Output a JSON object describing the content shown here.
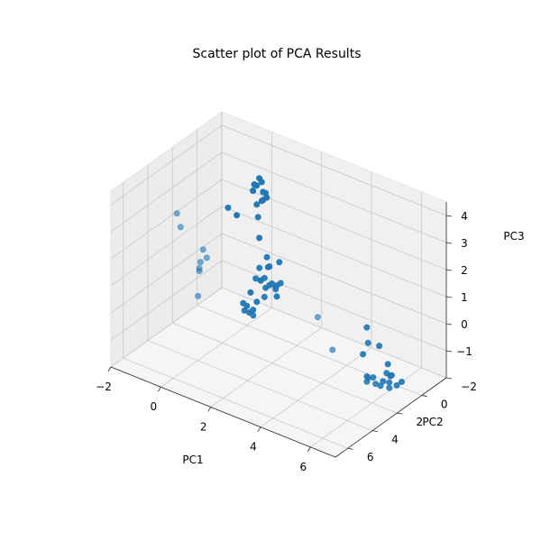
{
  "chart_data": {
    "type": "scatter",
    "title": "Scatter plot of PCA Results",
    "xlabel": "PC1",
    "ylabel": "PC2",
    "zlabel": "PC3",
    "xlim": [
      -2,
      7
    ],
    "ylim": [
      -2,
      7
    ],
    "zlim": [
      -2,
      4.5
    ],
    "xticks": [
      "−2",
      "0",
      "2",
      "4",
      "6"
    ],
    "yticks": [
      "−2",
      "0",
      "2",
      "4",
      "6"
    ],
    "zticks": [
      "−1",
      "0",
      "1",
      "2",
      "3",
      "4"
    ],
    "grid": true,
    "marker_color": "#1f77b4",
    "points": [
      [
        -0.5,
        -2.0,
        2.6
      ],
      [
        -0.3,
        -1.9,
        2.2
      ],
      [
        -0.6,
        -1.8,
        2.4
      ],
      [
        -0.2,
        -1.7,
        2.0
      ],
      [
        -0.4,
        -1.6,
        2.5
      ],
      [
        -0.1,
        -1.8,
        2.1
      ],
      [
        -0.5,
        -1.5,
        2.3
      ],
      [
        -0.3,
        -1.4,
        1.9
      ],
      [
        -0.2,
        -1.6,
        2.7
      ],
      [
        -0.6,
        -1.7,
        2.2
      ],
      [
        -0.4,
        -2.0,
        1.8
      ],
      [
        0.0,
        -1.5,
        2.4
      ],
      [
        -1.5,
        -1.5,
        1.3
      ],
      [
        -1.3,
        -1.8,
        1.0
      ],
      [
        -0.3,
        -1.5,
        1.4
      ],
      [
        -0.2,
        -1.4,
        0.7
      ],
      [
        0.3,
        -1.0,
        0.3
      ],
      [
        0.5,
        -0.8,
        0.1
      ],
      [
        0.7,
        -1.2,
        0.2
      ],
      [
        0.2,
        -0.6,
        0.0
      ],
      [
        0.4,
        -1.0,
        -0.7
      ],
      [
        0.6,
        -0.8,
        -0.5
      ],
      [
        0.2,
        -1.1,
        -0.9
      ],
      [
        0.8,
        -0.7,
        -0.6
      ],
      [
        0.3,
        -0.5,
        -0.4
      ],
      [
        0.5,
        -1.3,
        -0.8
      ],
      [
        0.1,
        -0.9,
        -0.6
      ],
      [
        0.7,
        -1.0,
        -1.0
      ],
      [
        0.4,
        -0.6,
        -0.3
      ],
      [
        0.6,
        -1.2,
        -0.7
      ],
      [
        0.0,
        -0.7,
        -0.5
      ],
      [
        0.9,
        -0.9,
        -0.4
      ],
      [
        0.2,
        -1.3,
        -0.2
      ],
      [
        0.5,
        -0.4,
        -0.9
      ],
      [
        -0.6,
        -1.2,
        -1.9
      ],
      [
        -0.4,
        -1.0,
        -2.0
      ],
      [
        -0.5,
        -0.8,
        -1.9
      ],
      [
        -0.3,
        -1.4,
        -1.7
      ],
      [
        -0.7,
        -1.1,
        -1.8
      ],
      [
        -0.2,
        -0.9,
        -2.0
      ],
      [
        -0.6,
        -1.5,
        -1.5
      ],
      [
        -0.4,
        -1.3,
        -2.0
      ],
      [
        0.4,
        6.2,
        3.8
      ],
      [
        0.3,
        6.3,
        4.3
      ],
      [
        0.8,
        5.6,
        1.2
      ],
      [
        1.2,
        6.0,
        3.2
      ],
      [
        1.0,
        5.8,
        2.6
      ],
      [
        1.1,
        6.1,
        2.4
      ],
      [
        1.3,
        5.9,
        2.9
      ],
      [
        0.9,
        5.7,
        2.3
      ],
      [
        4.8,
        0.0,
        -0.3
      ],
      [
        5.0,
        0.3,
        -0.7
      ],
      [
        5.2,
        -0.2,
        -0.9
      ],
      [
        4.6,
        -0.1,
        -1.4
      ],
      [
        5.3,
        0.5,
        -1.8
      ],
      [
        5.5,
        0.1,
        -2.0
      ],
      [
        5.6,
        -0.3,
        -1.9
      ],
      [
        5.1,
        0.6,
        -2.0
      ],
      [
        5.8,
        0.2,
        -1.9
      ],
      [
        5.4,
        -0.5,
        -1.6
      ],
      [
        5.9,
        0.4,
        -2.0
      ],
      [
        5.2,
        0.8,
        -1.7
      ],
      [
        6.0,
        0.0,
        -2.0
      ],
      [
        5.7,
        -0.2,
        -1.8
      ],
      [
        5.3,
        -0.6,
        -2.0
      ],
      [
        5.5,
        0.7,
        -1.9
      ],
      [
        5.0,
        0.3,
        -2.0
      ],
      [
        6.0,
        -0.4,
        -2.0
      ],
      [
        5.6,
        0.5,
        -2.0
      ],
      [
        5.6,
        4.4,
        0.6
      ],
      [
        5.5,
        5.4,
        2.1
      ]
    ]
  }
}
